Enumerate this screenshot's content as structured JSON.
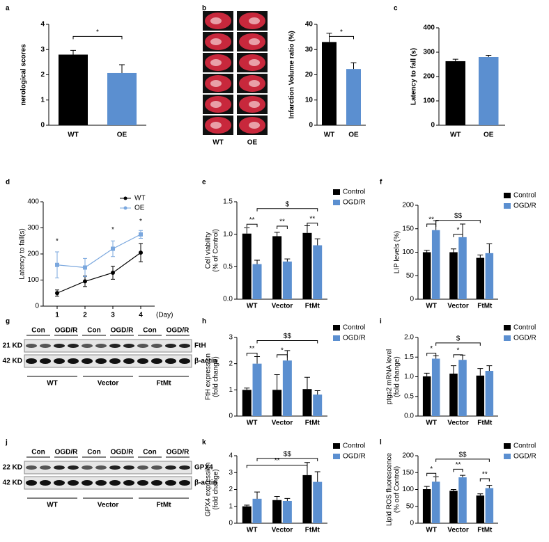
{
  "chart_data": [
    {
      "type": "bar",
      "label": "a",
      "ylabel": "nerological scores",
      "categories": [
        "WT",
        "OE"
      ],
      "values": [
        2.8,
        2.07
      ],
      "errors": [
        0.17,
        0.33
      ],
      "colors": [
        "#000000",
        "#5b8fd0"
      ],
      "ylim": [
        0,
        4
      ],
      "yticks": [
        0,
        1,
        2,
        3,
        4
      ],
      "annotations": [
        "*"
      ]
    },
    {
      "type": "bar",
      "label": "b",
      "image_labels": [
        "WT",
        "OE"
      ],
      "ylabel": "Infarction Volume  ratio (%)",
      "categories": [
        "WT",
        "OE"
      ],
      "values": [
        33,
        22.3
      ],
      "errors": [
        3.5,
        2.5
      ],
      "colors": [
        "#000000",
        "#5b8fd0"
      ],
      "ylim": [
        0,
        40
      ],
      "yticks": [
        0,
        10,
        20,
        30,
        40
      ],
      "annotations": [
        "*"
      ]
    },
    {
      "type": "bar",
      "label": "c",
      "ylabel": "Latency to fall (s)",
      "categories": [
        "WT",
        "OE"
      ],
      "values": [
        263,
        280
      ],
      "errors": [
        8,
        7
      ],
      "colors": [
        "#000000",
        "#5b8fd0"
      ],
      "ylim": [
        0,
        400
      ],
      "yticks": [
        0,
        100,
        200,
        300,
        400
      ],
      "annotations": []
    },
    {
      "type": "line",
      "label": "d",
      "ylabel": "Latency to fall(s)",
      "xlabel": "(Day)",
      "x": [
        1,
        2,
        3,
        4
      ],
      "xlim": [
        0.5,
        4.5
      ],
      "xticks": [
        1,
        2,
        3,
        4
      ],
      "ylim": [
        0,
        400
      ],
      "yticks": [
        0,
        100,
        200,
        300,
        400
      ],
      "legend": "upper right",
      "series": [
        {
          "name": "WT",
          "color": "#000000",
          "values": [
            50,
            95,
            128,
            205
          ],
          "errors": [
            12,
            20,
            25,
            35
          ]
        },
        {
          "name": "OE",
          "color": "#7aa7de",
          "values": [
            158,
            148,
            220,
            275
          ],
          "errors": [
            50,
            35,
            30,
            15
          ]
        }
      ],
      "annotations": [
        "*",
        "*",
        "*"
      ]
    },
    {
      "type": "bar",
      "label": "e",
      "ylabel": [
        "Cell viability",
        "(% of Control)"
      ],
      "categories": [
        "WT",
        "Vector",
        "FtMt"
      ],
      "ylim": [
        0,
        1.5
      ],
      "yticks": [
        {
          "value": 0,
          "label": "0.0"
        },
        {
          "value": 0.5,
          "label": "0.5"
        },
        {
          "value": 1,
          "label": "1.0"
        },
        {
          "value": 1.5,
          "label": "1.5"
        }
      ],
      "series": [
        {
          "name": "Control",
          "color": "#000000",
          "values": [
            1.01,
            0.97,
            1.02
          ],
          "errors": [
            0.09,
            0.06,
            0.11
          ]
        },
        {
          "name": "OGD/R",
          "color": "#5b8fd0",
          "values": [
            0.54,
            0.58,
            0.83
          ],
          "errors": [
            0.06,
            0.04,
            0.1
          ]
        }
      ],
      "annotations": [
        "**",
        "**",
        "**",
        "$"
      ]
    },
    {
      "type": "bar",
      "label": "f",
      "ylabel": "LIP levels (%)",
      "categories": [
        "WT",
        "Vector",
        "FtMt"
      ],
      "ylim": [
        0,
        200
      ],
      "yticks": [
        0,
        50,
        100,
        150,
        200
      ],
      "series": [
        {
          "name": "Control",
          "color": "#000000",
          "values": [
            100,
            100,
            88
          ],
          "errors": [
            4,
            7,
            6
          ]
        },
        {
          "name": "OGD/R",
          "color": "#5b8fd0",
          "values": [
            147,
            132,
            98
          ],
          "errors": [
            20,
            28,
            20
          ]
        }
      ],
      "annotations": [
        "**",
        "*",
        "$$"
      ]
    },
    {
      "type": "bar",
      "label": "h",
      "ylabel": [
        "FtH expression",
        "(fold change)"
      ],
      "categories": [
        "WT",
        "Vector",
        "FtMt"
      ],
      "ylim": [
        0,
        3
      ],
      "yticks": [
        0,
        1,
        2,
        3
      ],
      "series": [
        {
          "name": "Control",
          "color": "#000000",
          "values": [
            1.0,
            1.0,
            1.03
          ],
          "errors": [
            0.07,
            0.58,
            0.45
          ]
        },
        {
          "name": "OGD/R",
          "color": "#5b8fd0",
          "values": [
            2.0,
            2.12,
            0.82
          ],
          "errors": [
            0.27,
            0.38,
            0.15
          ]
        }
      ],
      "annotations": [
        "**",
        "*",
        "$$"
      ]
    },
    {
      "type": "bar",
      "label": "i",
      "ylabel": [
        "ptgs2 mRNA level",
        "(fold change)"
      ],
      "categories": [
        "WT",
        "Vector",
        "FtMt"
      ],
      "ylim": [
        0,
        2
      ],
      "yticks": [
        {
          "value": 0,
          "label": "0.0"
        },
        {
          "value": 0.5,
          "label": "0.5"
        },
        {
          "value": 1,
          "label": "1.0"
        },
        {
          "value": 1.5,
          "label": "1.5"
        },
        {
          "value": 2,
          "label": "2.0"
        }
      ],
      "series": [
        {
          "name": "Control",
          "color": "#000000",
          "values": [
            1.01,
            1.08,
            1.03
          ],
          "errors": [
            0.08,
            0.2,
            0.18
          ]
        },
        {
          "name": "OGD/R",
          "color": "#5b8fd0",
          "values": [
            1.46,
            1.43,
            1.15
          ],
          "errors": [
            0.07,
            0.12,
            0.13
          ]
        }
      ],
      "annotations": [
        "*",
        "*",
        "$"
      ]
    },
    {
      "type": "bar",
      "label": "k",
      "ylabel": [
        "GPX4 expression",
        "(fold change)"
      ],
      "categories": [
        "WT",
        "Vector",
        "FtMt"
      ],
      "ylim": [
        0,
        4
      ],
      "yticks": [
        0,
        1,
        2,
        3,
        4
      ],
      "series": [
        {
          "name": "Control",
          "color": "#000000",
          "values": [
            1.0,
            1.37,
            2.85
          ],
          "errors": [
            0.07,
            0.22,
            0.75
          ]
        },
        {
          "name": "OGD/R",
          "color": "#5b8fd0",
          "values": [
            1.45,
            1.32,
            2.45
          ],
          "errors": [
            0.4,
            0.15,
            0.6
          ]
        }
      ],
      "annotations": [
        "**",
        "$$"
      ]
    },
    {
      "type": "bar",
      "label": "l",
      "ylabel": [
        "Lipid ROS fluorescence",
        "(% oof Control)"
      ],
      "categories": [
        "WT",
        "Vector",
        "FtMt"
      ],
      "ylim": [
        0,
        200
      ],
      "yticks": [
        0,
        50,
        100,
        150,
        200
      ],
      "series": [
        {
          "name": "Control",
          "color": "#000000",
          "values": [
            101,
            96,
            82
          ],
          "errors": [
            8,
            4,
            5
          ]
        },
        {
          "name": "OGD/R",
          "color": "#5b8fd0",
          "values": [
            123,
            136,
            104
          ],
          "errors": [
            15,
            6,
            8
          ]
        }
      ],
      "annotations": [
        "*",
        "**",
        "**",
        "$$"
      ]
    }
  ],
  "blots": [
    {
      "label": "g",
      "lanes": [
        "Con",
        "OGD/R",
        "Con",
        "OGD/R",
        "Con",
        "OGD/R"
      ],
      "bands": [
        {
          "size": "21 KD",
          "name": "FtH"
        },
        {
          "size": "42 KD",
          "name": "β-actin"
        }
      ],
      "groups": [
        "WT",
        "Vector",
        "FtMt"
      ]
    },
    {
      "label": "j",
      "lanes": [
        "Con",
        "OGD/R",
        "Con",
        "OGD/R",
        "Con",
        "OGD/R"
      ],
      "bands": [
        {
          "size": "22 KD",
          "name": "GPX4"
        },
        {
          "size": "42 KD",
          "name": "β-actin"
        }
      ],
      "groups": [
        "WT",
        "Vector",
        "FtMt"
      ]
    }
  ]
}
